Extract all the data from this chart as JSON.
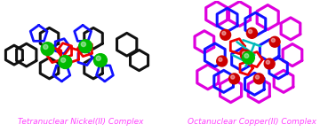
{
  "left_label": "Tetranuclear Nickel(II) Complex",
  "right_label": "Octanuclear Copper(II) Complex",
  "label_color": "#FF44FF",
  "label_fontsize": 6.5,
  "bg_color": "#ffffff",
  "fig_width": 3.78,
  "fig_height": 1.49,
  "dpi": 100,
  "ni_color": "#00BB00",
  "cu_color": "#CC0000",
  "blue_color": "#1111FF",
  "black_color": "#111111",
  "red_color": "#EE0000",
  "magenta_color": "#DD00DD",
  "cyan_color": "#00BBBB"
}
